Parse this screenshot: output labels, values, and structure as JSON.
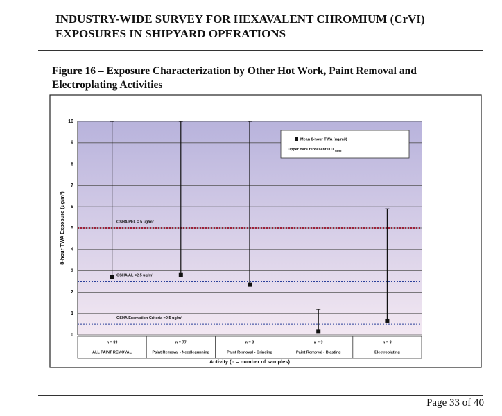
{
  "header": {
    "title_lines": [
      "INDUSTRY-WIDE SURVEY FOR HEXAVALENT CHROMIUM (CrVI)",
      "EXPOSURES IN SHIPYARD OPERATIONS"
    ]
  },
  "figure_caption_lines": [
    "Figure 16 – Exposure Characterization by Other Hot Work, Paint Removal and",
    "Electroplating Activities"
  ],
  "chart_data": {
    "type": "errorbar",
    "y_label": "8-hour TWA Exposure (ug/m³)",
    "x_label": "Activity (n = number of samples)",
    "categories": [
      "ALL PAINT REMOVAL",
      "Paint Removal - Needlegunning",
      "Paint Removal - Grinding",
      "Paint Removal - Blasting",
      "Electroplating"
    ],
    "sample_counts": [
      "n = 83",
      "n = 77",
      "n = 3",
      "n = 3",
      "n = 3"
    ],
    "series": [
      {
        "name": "Mean 8-hour TWA (ug/m3)",
        "color": "#111111",
        "values": [
          2.7,
          2.8,
          2.35,
          0.15,
          0.65
        ]
      },
      {
        "name": "Upper bars represent UTL",
        "name_subscript": "95,95",
        "color": "#111111",
        "values": [
          10,
          10,
          10,
          1.2,
          5.9
        ]
      }
    ],
    "reference_lines": [
      {
        "label": "OSHA PEL = 5 ug/m³",
        "value": 5,
        "color": "#a0203a"
      },
      {
        "label": "OSHA AL =2.5 ug/m³",
        "value": 2.5,
        "color": "#2a3f9a"
      },
      {
        "label": "OSHA Exemption Criteria =0.5 ug/m³",
        "value": 0.5,
        "color": "#2a3f9a"
      }
    ],
    "ylim": [
      0,
      10
    ],
    "yticks": [
      0,
      1,
      2,
      3,
      4,
      5,
      6,
      7,
      8,
      9,
      10
    ],
    "grid": true
  },
  "footer": {
    "page": "Page 33 of 40"
  }
}
